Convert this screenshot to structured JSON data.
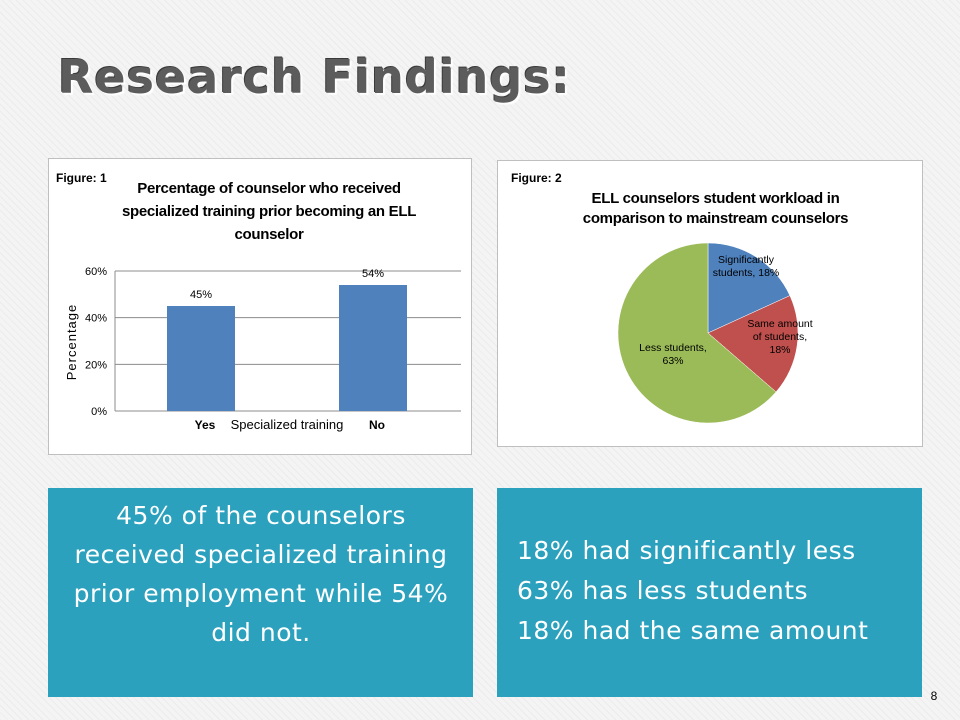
{
  "slide": {
    "title": "Research Findings:",
    "page_number": "8"
  },
  "figure1": {
    "label": "Figure: 1",
    "title_lines": [
      "Percentage of counselor who received",
      "specialized training prior becoming an ELL",
      "counselor"
    ],
    "chart_data": {
      "type": "bar",
      "title": "Percentage of counselor who received specialized training prior becoming an ELL counselor",
      "categories": [
        "Yes",
        "No"
      ],
      "values": [
        45,
        54
      ],
      "data_labels": [
        "45%",
        "54%"
      ],
      "xlabel": "Specialized training",
      "ylabel": "Percentage",
      "ylim": [
        0,
        60
      ],
      "y_ticks": [
        "0%",
        "20%",
        "40%",
        "60%"
      ],
      "grid": true,
      "bar_color": "#4f81bd"
    }
  },
  "figure2": {
    "label": "Figure: 2",
    "title_lines": [
      "ELL counselors student workload in",
      "comparison to mainstream counselors"
    ],
    "chart_data": {
      "type": "pie",
      "title": "ELL counselors student workload in comparison to mainstream counselors",
      "slices": [
        {
          "label_lines": [
            "Significantly",
            "students, 18%"
          ],
          "value": 18,
          "color": "#4f81bd"
        },
        {
          "label_lines": [
            "Same amount",
            "of students,",
            "18%"
          ],
          "value": 18,
          "color": "#c0504d"
        },
        {
          "label_lines": [
            "Less students,",
            "63%"
          ],
          "value": 63,
          "color": "#9bbb59"
        }
      ]
    }
  },
  "summary_left": {
    "text": "45% of the counselors received specialized training prior employment while 54% did not."
  },
  "summary_right": {
    "lines": [
      "18% had significantly less",
      "63% has less students",
      "18% had the same amount"
    ]
  }
}
